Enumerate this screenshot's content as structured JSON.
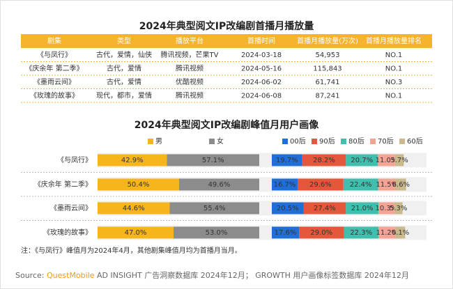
{
  "table": {
    "title": "2024年典型阅文IP改编剧首播月播放量",
    "columns": [
      "剧集",
      "类型",
      "播放平台",
      "首播时间",
      "首播月播放量(万次)",
      "首播月播放量排名"
    ],
    "rows": [
      [
        "《与凤行》",
        "古代，爱情，仙侠",
        "腾讯视频，芒果TV",
        "2024-03-18",
        "54,953",
        "NO.1"
      ],
      [
        "《庆余年 第二季》",
        "古代，爱情",
        "腾讯视频",
        "2024-05-16",
        "115,843",
        "NO.1"
      ],
      [
        "《墨雨云间》",
        "古代，爱情",
        "优酷视频",
        "2024-06-02",
        "61,741",
        "NO.3"
      ],
      [
        "《玫瑰的故事》",
        "现代，都市，爱情",
        "腾讯视频",
        "2024-06-08",
        "87,241",
        "NO.1"
      ]
    ]
  },
  "chart_data": [
    {
      "type": "bar",
      "orientation": "horizontal",
      "stacked": true,
      "title": "2024年典型阅文IP改编剧峰值月用户画像",
      "categories": [
        "《与凤行》",
        "《庆余年 第二季》",
        "《墨雨云间》",
        "《玫瑰的故事》"
      ],
      "xlim": [
        0,
        100
      ],
      "series": [
        {
          "name": "男",
          "color": "#f5b51b",
          "values": [
            42.9,
            50.4,
            44.6,
            47.0
          ],
          "value_labels": [
            "42.9%",
            "50.4%",
            "44.6%",
            "47.0%"
          ]
        },
        {
          "name": "女",
          "color": "#8c8c8c",
          "values": [
            57.1,
            49.6,
            55.4,
            53.0
          ],
          "value_labels": [
            "57.1%",
            "49.6%",
            "55.4%",
            "53.0%"
          ]
        }
      ]
    },
    {
      "type": "bar",
      "orientation": "horizontal",
      "stacked": true,
      "xlim": [
        0,
        100
      ],
      "series": [
        {
          "name": "00后",
          "color": "#1f6fd6",
          "values": [
            19.7,
            16.7,
            20.5,
            17.6
          ],
          "value_labels": [
            "19.7%",
            "16.7%",
            "20.5%",
            "17.6%"
          ]
        },
        {
          "name": "90后",
          "color": "#e5573a",
          "values": [
            28.2,
            29.6,
            27.4,
            29.0
          ],
          "value_labels": [
            "28.2%",
            "29.6%",
            "27.4%",
            "29.0%"
          ]
        },
        {
          "name": "80后",
          "color": "#40bfae",
          "values": [
            20.7,
            22.4,
            21.0,
            22.3
          ],
          "value_labels": [
            "20.7%",
            "22.4%",
            "21.0%",
            "22.3%"
          ]
        },
        {
          "name": "70后",
          "color": "#f4a394",
          "values": [
            11.0,
            11.5,
            10.3,
            11.2
          ],
          "value_labels": [
            "11.0%",
            "11.5%",
            "10.3%",
            "11.2%"
          ]
        },
        {
          "name": "60后",
          "color": "#c9b98c",
          "values": [
            5.7,
            6.6,
            5.3,
            6.1
          ],
          "value_labels": [
            "5.7%",
            "6.6%",
            "5.3%",
            "6.1%"
          ]
        }
      ]
    }
  ],
  "note": "注：《与凤行》峰值月为2024年4月，其他剧集峰值月均为首播月当月。",
  "source": {
    "label": "Source:",
    "brand": "QuestMobile",
    "text": "AD INSIGHT 广告洞察数据库 2024年12月； GROWTH 用户画像标签数据库 2024年12月"
  }
}
